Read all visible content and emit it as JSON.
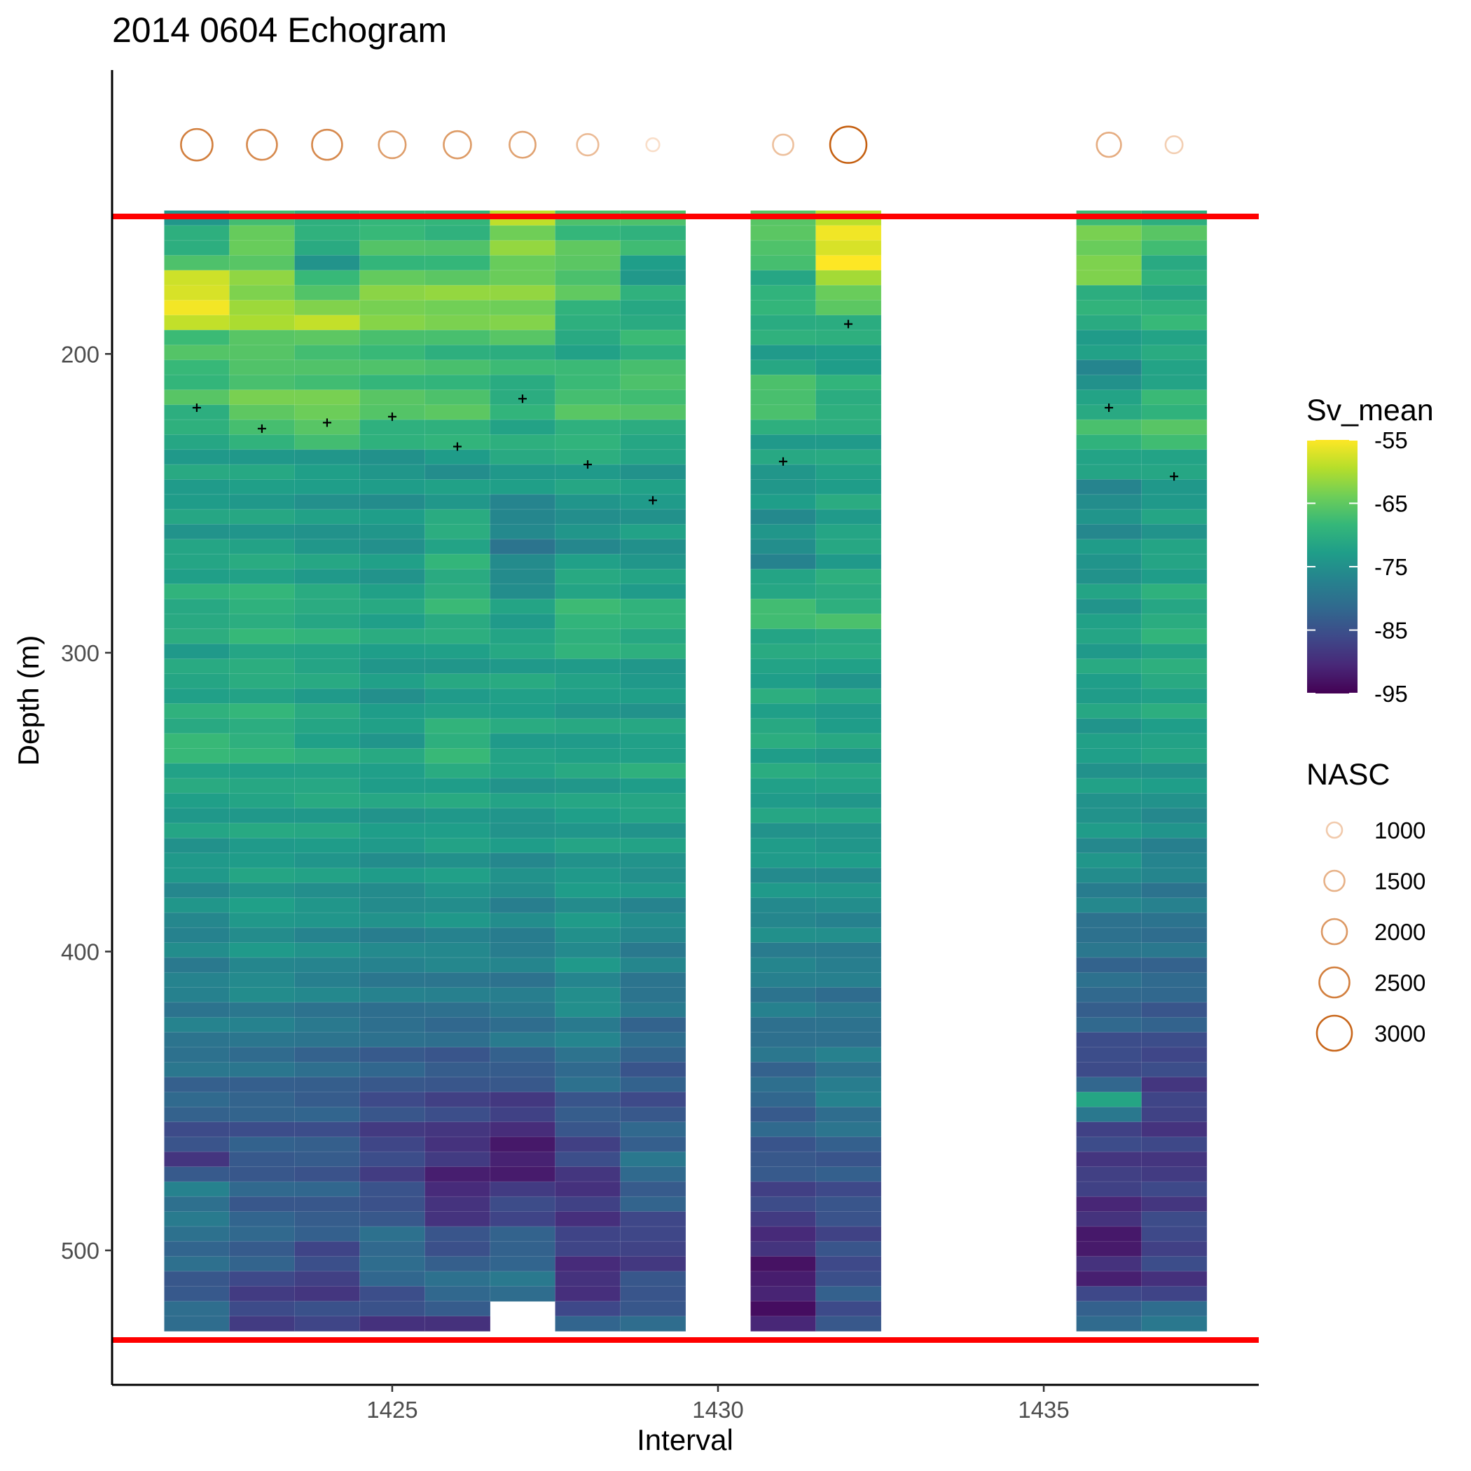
{
  "chart_data": {
    "type": "heatmap",
    "title": "2014 0604 Echogram",
    "xlabel": "Interval",
    "ylabel": "Depth (m)",
    "x_ticks": [
      1425,
      1430,
      1435
    ],
    "y_ticks": [
      200,
      300,
      400,
      500
    ],
    "xlim": [
      1420.7,
      1438.3
    ],
    "ylim": [
      105,
      545
    ],
    "y_reversed": true,
    "grid": false,
    "intervals": [
      1422,
      1423,
      1424,
      1425,
      1426,
      1427,
      1428,
      1429,
      1431,
      1432,
      1436,
      1437
    ],
    "depth_range": [
      152,
      527
    ],
    "cell_height_m": 5,
    "sv_profiles": [
      {
        "interval": 1422,
        "bottom": 527,
        "anchors": [
          [
            152,
            -73
          ],
          [
            167,
            -69
          ],
          [
            172,
            -62
          ],
          [
            178,
            -56
          ],
          [
            187,
            -56
          ],
          [
            195,
            -67
          ],
          [
            210,
            -68
          ],
          [
            215,
            -67
          ],
          [
            230,
            -72
          ],
          [
            260,
            -73
          ],
          [
            285,
            -70
          ],
          [
            300,
            -72
          ],
          [
            320,
            -71
          ],
          [
            330,
            -68
          ],
          [
            345,
            -72
          ],
          [
            370,
            -74
          ],
          [
            400,
            -77
          ],
          [
            430,
            -79
          ],
          [
            455,
            -83
          ],
          [
            470,
            -88
          ],
          [
            480,
            -78
          ],
          [
            500,
            -81
          ],
          [
            515,
            -84
          ],
          [
            527,
            -78
          ]
        ]
      },
      {
        "interval": 1423,
        "bottom": 527,
        "anchors": [
          [
            152,
            -66
          ],
          [
            172,
            -64
          ],
          [
            187,
            -60
          ],
          [
            200,
            -67
          ],
          [
            220,
            -64
          ],
          [
            232,
            -72
          ],
          [
            260,
            -73
          ],
          [
            285,
            -69
          ],
          [
            310,
            -71
          ],
          [
            330,
            -69
          ],
          [
            345,
            -72
          ],
          [
            380,
            -73
          ],
          [
            410,
            -76
          ],
          [
            440,
            -81
          ],
          [
            460,
            -84
          ],
          [
            480,
            -83
          ],
          [
            500,
            -82
          ],
          [
            516,
            -88
          ],
          [
            527,
            -86
          ]
        ]
      },
      {
        "interval": 1424,
        "bottom": 527,
        "anchors": [
          [
            152,
            -68
          ],
          [
            162,
            -70
          ],
          [
            168,
            -74
          ],
          [
            178,
            -67
          ],
          [
            188,
            -59
          ],
          [
            200,
            -68
          ],
          [
            222,
            -63
          ],
          [
            235,
            -73
          ],
          [
            260,
            -74
          ],
          [
            290,
            -70
          ],
          [
            310,
            -72
          ],
          [
            340,
            -71
          ],
          [
            380,
            -74
          ],
          [
            410,
            -77
          ],
          [
            440,
            -82
          ],
          [
            460,
            -84
          ],
          [
            490,
            -83
          ],
          [
            512,
            -88
          ],
          [
            527,
            -85
          ]
        ]
      },
      {
        "interval": 1425,
        "bottom": 527,
        "anchors": [
          [
            152,
            -68
          ],
          [
            172,
            -67
          ],
          [
            182,
            -61
          ],
          [
            200,
            -68
          ],
          [
            220,
            -66
          ],
          [
            235,
            -74
          ],
          [
            270,
            -74
          ],
          [
            290,
            -71
          ],
          [
            310,
            -74
          ],
          [
            340,
            -72
          ],
          [
            380,
            -75
          ],
          [
            410,
            -78
          ],
          [
            440,
            -83
          ],
          [
            460,
            -87
          ],
          [
            480,
            -86
          ],
          [
            500,
            -80
          ],
          [
            515,
            -84
          ],
          [
            527,
            -90
          ]
        ]
      },
      {
        "interval": 1426,
        "bottom": 527,
        "anchors": [
          [
            152,
            -69
          ],
          [
            172,
            -67
          ],
          [
            182,
            -61
          ],
          [
            200,
            -69
          ],
          [
            220,
            -66
          ],
          [
            240,
            -75
          ],
          [
            255,
            -71
          ],
          [
            290,
            -69
          ],
          [
            300,
            -73
          ],
          [
            320,
            -72
          ],
          [
            330,
            -68
          ],
          [
            345,
            -72
          ],
          [
            380,
            -74
          ],
          [
            410,
            -78
          ],
          [
            440,
            -84
          ],
          [
            460,
            -88
          ],
          [
            480,
            -91
          ],
          [
            500,
            -84
          ],
          [
            515,
            -80
          ],
          [
            527,
            -92
          ]
        ]
      },
      {
        "interval": 1427,
        "bottom": 517,
        "anchors": [
          [
            152,
            -57
          ],
          [
            157,
            -62
          ],
          [
            172,
            -64
          ],
          [
            187,
            -62
          ],
          [
            200,
            -69
          ],
          [
            215,
            -70
          ],
          [
            235,
            -71
          ],
          [
            250,
            -76
          ],
          [
            265,
            -78
          ],
          [
            290,
            -72
          ],
          [
            330,
            -72
          ],
          [
            360,
            -74
          ],
          [
            390,
            -77
          ],
          [
            430,
            -80
          ],
          [
            450,
            -87
          ],
          [
            470,
            -93
          ],
          [
            480,
            -88
          ],
          [
            500,
            -82
          ],
          [
            517,
            -79
          ]
        ]
      },
      {
        "interval": 1428,
        "bottom": 527,
        "anchors": [
          [
            152,
            -68
          ],
          [
            172,
            -65
          ],
          [
            182,
            -67
          ],
          [
            195,
            -72
          ],
          [
            215,
            -66
          ],
          [
            240,
            -72
          ],
          [
            262,
            -76
          ],
          [
            272,
            -72
          ],
          [
            290,
            -68
          ],
          [
            310,
            -73
          ],
          [
            340,
            -72
          ],
          [
            380,
            -74
          ],
          [
            420,
            -76
          ],
          [
            450,
            -83
          ],
          [
            480,
            -89
          ],
          [
            500,
            -87
          ],
          [
            510,
            -91
          ],
          [
            527,
            -82
          ]
        ]
      },
      {
        "interval": 1429,
        "bottom": 527,
        "anchors": [
          [
            152,
            -68
          ],
          [
            165,
            -68
          ],
          [
            170,
            -74
          ],
          [
            178,
            -71
          ],
          [
            190,
            -70
          ],
          [
            215,
            -66
          ],
          [
            235,
            -73
          ],
          [
            270,
            -74
          ],
          [
            290,
            -69
          ],
          [
            310,
            -74
          ],
          [
            340,
            -71
          ],
          [
            380,
            -75
          ],
          [
            420,
            -80
          ],
          [
            450,
            -85
          ],
          [
            470,
            -80
          ],
          [
            500,
            -88
          ],
          [
            515,
            -84
          ],
          [
            527,
            -82
          ]
        ]
      },
      {
        "interval": 1431,
        "bottom": 527,
        "anchors": [
          [
            152,
            -68
          ],
          [
            162,
            -64
          ],
          [
            172,
            -70
          ],
          [
            190,
            -69
          ],
          [
            200,
            -73
          ],
          [
            215,
            -65
          ],
          [
            228,
            -72
          ],
          [
            270,
            -76
          ],
          [
            285,
            -67
          ],
          [
            300,
            -72
          ],
          [
            330,
            -71
          ],
          [
            370,
            -74
          ],
          [
            400,
            -77
          ],
          [
            430,
            -80
          ],
          [
            470,
            -84
          ],
          [
            490,
            -88
          ],
          [
            505,
            -92
          ],
          [
            527,
            -92
          ]
        ]
      },
      {
        "interval": 1432,
        "bottom": 527,
        "anchors": [
          [
            152,
            -64
          ],
          [
            157,
            -56
          ],
          [
            172,
            -56
          ],
          [
            177,
            -63
          ],
          [
            190,
            -69
          ],
          [
            200,
            -73
          ],
          [
            215,
            -69
          ],
          [
            230,
            -72
          ],
          [
            270,
            -72
          ],
          [
            290,
            -68
          ],
          [
            305,
            -73
          ],
          [
            340,
            -72
          ],
          [
            380,
            -75
          ],
          [
            420,
            -80
          ],
          [
            450,
            -78
          ],
          [
            470,
            -84
          ],
          [
            500,
            -86
          ],
          [
            515,
            -84
          ],
          [
            527,
            -85
          ]
        ]
      },
      {
        "interval": 1436,
        "bottom": 527,
        "anchors": [
          [
            152,
            -67
          ],
          [
            162,
            -64
          ],
          [
            172,
            -62
          ],
          [
            180,
            -69
          ],
          [
            195,
            -72
          ],
          [
            205,
            -76
          ],
          [
            215,
            -73
          ],
          [
            222,
            -67
          ],
          [
            235,
            -71
          ],
          [
            245,
            -76
          ],
          [
            270,
            -74
          ],
          [
            300,
            -72
          ],
          [
            330,
            -73
          ],
          [
            370,
            -75
          ],
          [
            395,
            -80
          ],
          [
            420,
            -82
          ],
          [
            440,
            -87
          ],
          [
            450,
            -72
          ],
          [
            460,
            -87
          ],
          [
            480,
            -88
          ],
          [
            495,
            -92
          ],
          [
            510,
            -90
          ],
          [
            527,
            -78
          ]
        ]
      },
      {
        "interval": 1437,
        "bottom": 527,
        "anchors": [
          [
            152,
            -69
          ],
          [
            162,
            -66
          ],
          [
            172,
            -71
          ],
          [
            190,
            -69
          ],
          [
            200,
            -72
          ],
          [
            210,
            -71
          ],
          [
            225,
            -66
          ],
          [
            240,
            -73
          ],
          [
            260,
            -73
          ],
          [
            290,
            -70
          ],
          [
            330,
            -72
          ],
          [
            360,
            -76
          ],
          [
            395,
            -80
          ],
          [
            420,
            -83
          ],
          [
            440,
            -87
          ],
          [
            470,
            -88
          ],
          [
            500,
            -86
          ],
          [
            512,
            -89
          ],
          [
            527,
            -75
          ]
        ]
      }
    ],
    "sv_legend": {
      "title": "Sv_mean",
      "ticks": [
        -55,
        -65,
        -75,
        -85,
        -95
      ],
      "range": [
        -95,
        -55
      ],
      "palette": [
        "#440154",
        "#482878",
        "#3e4989",
        "#31688e",
        "#26828e",
        "#1f9e89",
        "#35b779",
        "#6ece58",
        "#b5de2b",
        "#fde725"
      ]
    },
    "nasc_points": [
      {
        "interval": 1422,
        "nasc": 2500
      },
      {
        "interval": 1423,
        "nasc": 2300
      },
      {
        "interval": 1424,
        "nasc": 2300
      },
      {
        "interval": 1425,
        "nasc": 1900
      },
      {
        "interval": 1426,
        "nasc": 1950
      },
      {
        "interval": 1427,
        "nasc": 1800
      },
      {
        "interval": 1428,
        "nasc": 1300
      },
      {
        "interval": 1429,
        "nasc": 600
      },
      {
        "interval": 1431,
        "nasc": 1200
      },
      {
        "interval": 1432,
        "nasc": 3200
      },
      {
        "interval": 1436,
        "nasc": 1600
      },
      {
        "interval": 1437,
        "nasc": 900
      }
    ],
    "nasc_row_depth": 130,
    "nasc_legend": {
      "title": "NASC",
      "values": [
        1000,
        1500,
        2000,
        2500,
        3000
      ]
    },
    "center_of_mass": [
      {
        "interval": 1422,
        "depth": 218
      },
      {
        "interval": 1423,
        "depth": 225
      },
      {
        "interval": 1424,
        "depth": 223
      },
      {
        "interval": 1425,
        "depth": 221
      },
      {
        "interval": 1426,
        "depth": 231
      },
      {
        "interval": 1427,
        "depth": 215
      },
      {
        "interval": 1428,
        "depth": 237
      },
      {
        "interval": 1429,
        "depth": 249
      },
      {
        "interval": 1431,
        "depth": 236
      },
      {
        "interval": 1432,
        "depth": 190
      },
      {
        "interval": 1436,
        "depth": 218
      },
      {
        "interval": 1437,
        "depth": 241
      }
    ],
    "reference_lines": [
      {
        "depth": 154,
        "color": "#ff0000"
      },
      {
        "depth": 530,
        "color": "#ff0000"
      }
    ],
    "nasc_color_low": "#fbe3d0",
    "nasc_color_high": "#c8661a"
  }
}
